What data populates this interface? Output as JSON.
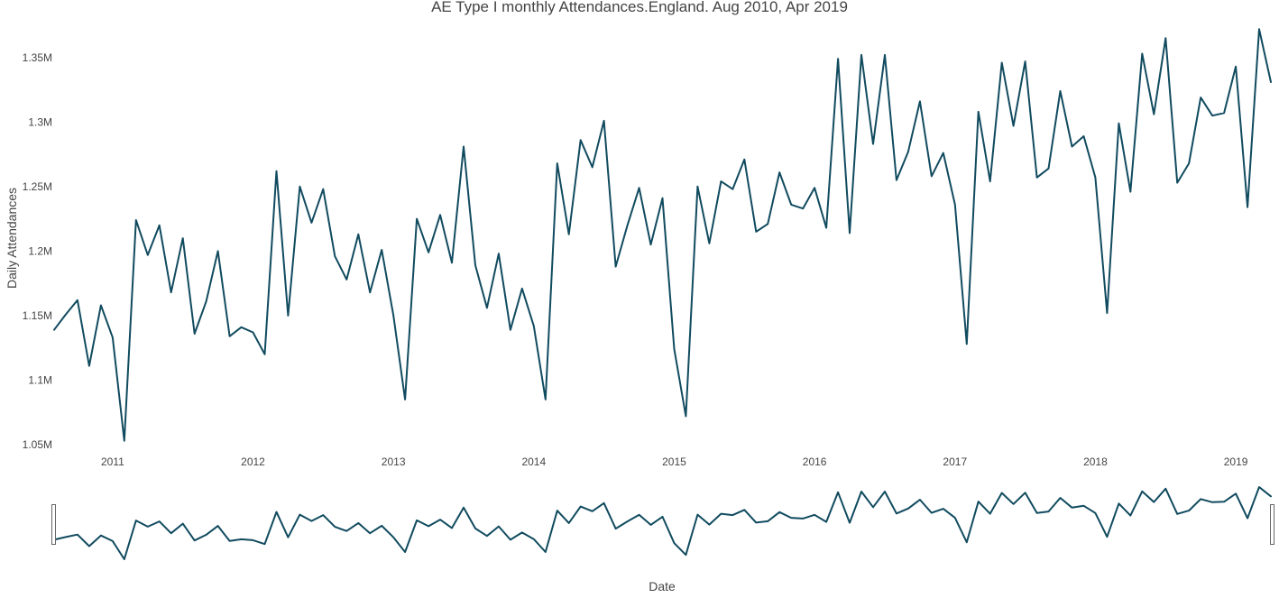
{
  "chart_data": {
    "type": "line",
    "title": "AE Type I monthly Attendances.England. Aug 2010, Apr 2019",
    "xlabel": "Date",
    "ylabel": "Daily Attendances",
    "y_ticks": [
      {
        "value": 1050000,
        "label": "1.05M"
      },
      {
        "value": 1100000,
        "label": "1.1M"
      },
      {
        "value": 1150000,
        "label": "1.15M"
      },
      {
        "value": 1200000,
        "label": "1.2M"
      },
      {
        "value": 1250000,
        "label": "1.25M"
      },
      {
        "value": 1300000,
        "label": "1.3M"
      },
      {
        "value": 1350000,
        "label": "1.35M"
      }
    ],
    "x_ticks": [
      {
        "value": "2011-01",
        "label": "2011"
      },
      {
        "value": "2012-01",
        "label": "2012"
      },
      {
        "value": "2013-01",
        "label": "2013"
      },
      {
        "value": "2014-01",
        "label": "2014"
      },
      {
        "value": "2015-01",
        "label": "2015"
      },
      {
        "value": "2016-01",
        "label": "2016"
      },
      {
        "value": "2017-01",
        "label": "2017"
      },
      {
        "value": "2018-01",
        "label": "2018"
      },
      {
        "value": "2019-01",
        "label": "2019"
      }
    ],
    "xlim": [
      "2010-08",
      "2019-04"
    ],
    "ylim": [
      1050000,
      1375000
    ],
    "grid": false,
    "legend": "none",
    "range_slider": true,
    "line_color": "#114b5f",
    "series": [
      {
        "x": [
          "2010-08",
          "2010-09",
          "2010-10",
          "2010-11",
          "2010-12",
          "2011-01",
          "2011-02",
          "2011-03",
          "2011-04",
          "2011-05",
          "2011-06",
          "2011-07",
          "2011-08",
          "2011-09",
          "2011-10",
          "2011-11",
          "2011-12",
          "2012-01",
          "2012-02",
          "2012-03",
          "2012-04",
          "2012-05",
          "2012-06",
          "2012-07",
          "2012-08",
          "2012-09",
          "2012-10",
          "2012-11",
          "2012-12",
          "2013-01",
          "2013-02",
          "2013-03",
          "2013-04",
          "2013-05",
          "2013-06",
          "2013-07",
          "2013-08",
          "2013-09",
          "2013-10",
          "2013-11",
          "2013-12",
          "2014-01",
          "2014-02",
          "2014-03",
          "2014-04",
          "2014-05",
          "2014-06",
          "2014-07",
          "2014-08",
          "2014-09",
          "2014-10",
          "2014-11",
          "2014-12",
          "2015-01",
          "2015-02",
          "2015-03",
          "2015-04",
          "2015-05",
          "2015-06",
          "2015-07",
          "2015-08",
          "2015-09",
          "2015-10",
          "2015-11",
          "2015-12",
          "2016-01",
          "2016-02",
          "2016-03",
          "2016-04",
          "2016-05",
          "2016-06",
          "2016-07",
          "2016-08",
          "2016-09",
          "2016-10",
          "2016-11",
          "2016-12",
          "2017-01",
          "2017-02",
          "2017-03",
          "2017-04",
          "2017-05",
          "2017-06",
          "2017-07",
          "2017-08",
          "2017-09",
          "2017-10",
          "2017-11",
          "2017-12",
          "2018-01",
          "2018-02",
          "2018-03",
          "2018-04",
          "2018-05",
          "2018-06",
          "2018-07",
          "2018-08",
          "2018-09",
          "2018-10",
          "2018-11",
          "2018-12",
          "2019-01",
          "2019-02",
          "2019-03",
          "2019-04"
        ],
        "y": [
          1139000,
          1151000,
          1162000,
          1111000,
          1158000,
          1133000,
          1053000,
          1224000,
          1197000,
          1220000,
          1168000,
          1210000,
          1136000,
          1161000,
          1200000,
          1134000,
          1141000,
          1137000,
          1120000,
          1262000,
          1150000,
          1250000,
          1222000,
          1248000,
          1196000,
          1178000,
          1213000,
          1168000,
          1201000,
          1150000,
          1085000,
          1225000,
          1199000,
          1228000,
          1191000,
          1281000,
          1189000,
          1156000,
          1198000,
          1139000,
          1171000,
          1142000,
          1085000,
          1268000,
          1213000,
          1286000,
          1265000,
          1301000,
          1188000,
          1220000,
          1249000,
          1205000,
          1241000,
          1124000,
          1072000,
          1250000,
          1206000,
          1254000,
          1248000,
          1271000,
          1215000,
          1221000,
          1261000,
          1236000,
          1233000,
          1249000,
          1218000,
          1349000,
          1214000,
          1352000,
          1283000,
          1352000,
          1255000,
          1277000,
          1316000,
          1258000,
          1276000,
          1236000,
          1128000,
          1308000,
          1254000,
          1346000,
          1297000,
          1347000,
          1257000,
          1264000,
          1324000,
          1281000,
          1289000,
          1257000,
          1152000,
          1299000,
          1246000,
          1353000,
          1306000,
          1365000,
          1253000,
          1268000,
          1319000,
          1305000,
          1307000,
          1343000,
          1234000,
          1372000,
          1331000
        ]
      }
    ]
  }
}
